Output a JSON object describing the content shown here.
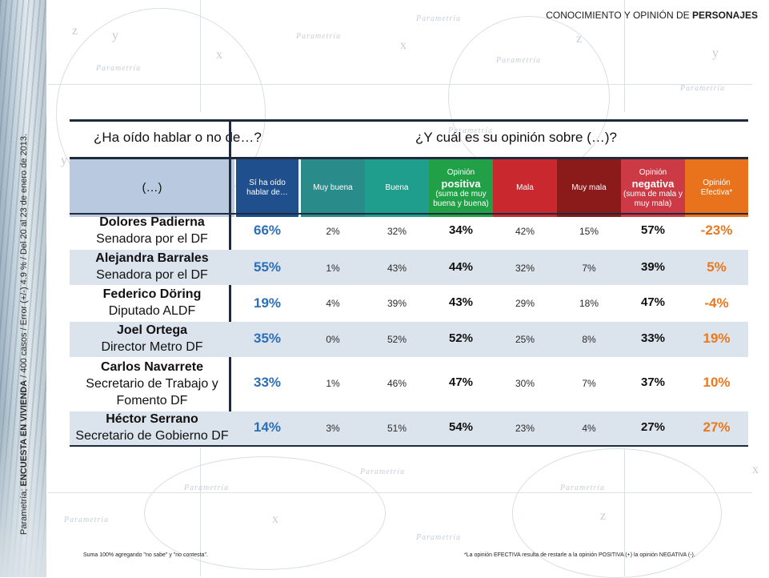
{
  "header": {
    "title_prefix": "CONOCIMIENTO Y OPINIÓN DE ",
    "title_bold": "PERSONAJES"
  },
  "side": {
    "source": "Parametría; ",
    "survey": "ENCUESTA EN VIVIENDA",
    "details": " / 400 casos / Error (+/-) 4.9 % / Del 20 al 23 de enero de 2013."
  },
  "watermark": "Parametría",
  "table": {
    "question_known": "¿Ha oído hablar o no de…?",
    "question_opinion": "¿Y cuál es su opinión sobre (…)?",
    "columns": {
      "name": "(…)",
      "known": "Sí ha oído hablar de…",
      "very_good": "Muy buena",
      "good": "Buena",
      "positive_top": "Opinión",
      "positive_main": "positiva",
      "positive_sub": "(suma de muy buena y buena)",
      "bad": "Mala",
      "very_bad": "Muy mala",
      "negative_top": "Opinión",
      "negative_main": "negativa",
      "negative_sub": "(suma de mala y muy mala)",
      "effective": "Opinión Efectiva*"
    },
    "colors": {
      "name_header": "#b9c9e0",
      "known_header": "#1f4f8c",
      "very_good": "#2a8c8a",
      "good": "#1f9e8d",
      "positive": "#22a048",
      "bad": "#c8282e",
      "very_bad": "#8b1a1a",
      "negative": "#cc3a45",
      "effective": "#e8731c",
      "alt_row": "#dbe3ed",
      "known_text": "#2a6fb8",
      "effective_text": "#e8791f"
    },
    "rows": [
      {
        "name": "Dolores Padierna",
        "role": "Senadora por el DF",
        "known": "66%",
        "very_good": "2%",
        "good": "32%",
        "positive": "34%",
        "bad": "42%",
        "very_bad": "15%",
        "negative": "57%",
        "effective": "-23%"
      },
      {
        "name": "Alejandra Barrales",
        "role": "Senadora por el DF",
        "known": "55%",
        "very_good": "1%",
        "good": "43%",
        "positive": "44%",
        "bad": "32%",
        "very_bad": "7%",
        "negative": "39%",
        "effective": "5%"
      },
      {
        "name": "Federico Döring",
        "role": "Diputado ALDF",
        "known": "19%",
        "very_good": "4%",
        "good": "39%",
        "positive": "43%",
        "bad": "29%",
        "very_bad": "18%",
        "negative": "47%",
        "effective": "-4%"
      },
      {
        "name": "Joel Ortega",
        "role": "Director Metro DF",
        "known": "35%",
        "very_good": "0%",
        "good": "52%",
        "positive": "52%",
        "bad": "25%",
        "very_bad": "8%",
        "negative": "33%",
        "effective": "19%"
      },
      {
        "name": "Carlos Navarrete",
        "role": "Secretario de Trabajo y Fomento DF",
        "known": "33%",
        "very_good": "1%",
        "good": "46%",
        "positive": "47%",
        "bad": "30%",
        "very_bad": "7%",
        "negative": "37%",
        "effective": "10%"
      },
      {
        "name": "Héctor Serrano",
        "role": "Secretario de Gobierno DF",
        "known": "14%",
        "very_good": "3%",
        "good": "51%",
        "positive": "54%",
        "bad": "23%",
        "very_bad": "4%",
        "negative": "27%",
        "effective": "27%"
      }
    ]
  },
  "footnotes": {
    "left": "Suma 100% agregando \"no sabe\" y \"no contesta\".",
    "right": "*La opinión EFECTIVA resulta de restarle a la opinión POSITIVA (+) la opinión NEGATIVA (-)."
  }
}
